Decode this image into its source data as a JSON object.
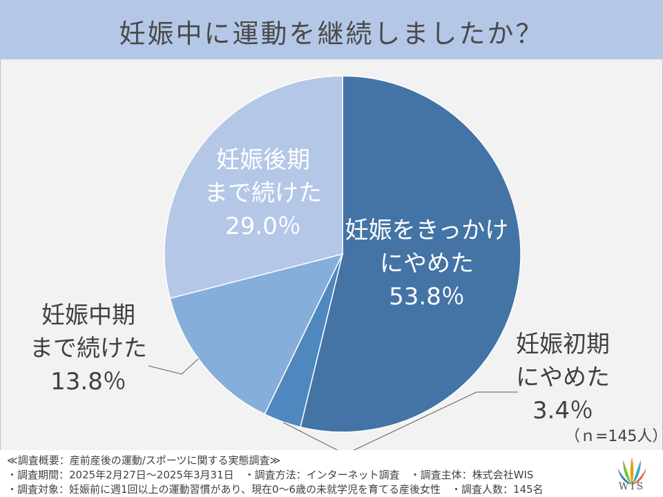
{
  "title": "妊娠中に運動を継続しましたか？",
  "n_label": "（ｎ=145人）",
  "notes": [
    "≪調査概要：産前産後の運動/スポーツに関する実態調査≫",
    "・調査期間：2025年2月27日～2025年3月31日　・調査方法：インターネット調査　・調査主体：株式会社WIS",
    "・調査対象：妊娠前に週1回以上の運動習慣があり、現在0～6歳の未就学児を育てる産後女性　・調査人数：145名"
  ],
  "logo_text": "WIS",
  "chart_data": {
    "type": "pie",
    "start": "top",
    "direction": "clockwise",
    "slices": [
      {
        "label_lines": [
          "妊娠をきっかけ",
          "にやめた"
        ],
        "value_label": "53.8％",
        "value": 53.8,
        "color": "#4474a6",
        "text_color": "#ffffff"
      },
      {
        "label_lines": [
          "妊娠初期",
          "にやめた"
        ],
        "value_label": "3.4％",
        "value": 3.4,
        "color": "#4f87bf",
        "text_color": "#404040"
      },
      {
        "label_lines": [
          "妊娠中期",
          "まで続けた"
        ],
        "value_label": "13.8％",
        "value": 13.8,
        "color": "#86aedb",
        "text_color": "#404040"
      },
      {
        "label_lines": [
          "妊娠後期",
          "まで続けた"
        ],
        "value_label": "29.0％",
        "value": 29.0,
        "color": "#b4c7e7",
        "text_color": "#ffffff"
      }
    ]
  }
}
